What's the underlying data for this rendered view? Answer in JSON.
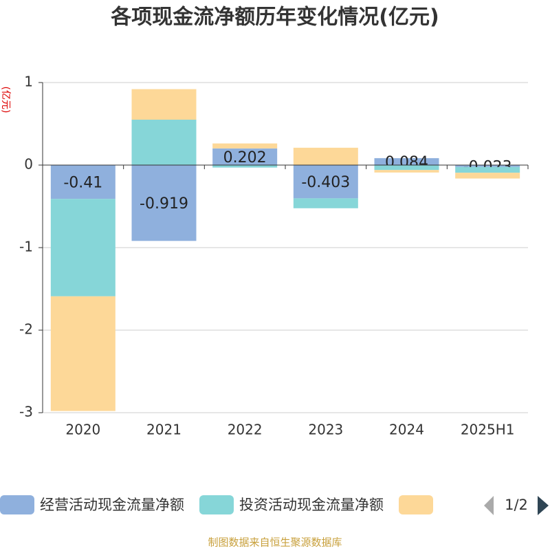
{
  "chart_data": {
    "type": "stacked_bar",
    "title": "各项现金流净额历年变化情况(亿元)",
    "y_label": "(亿元)",
    "categories": [
      "2020",
      "2021",
      "2022",
      "2023",
      "2024",
      "2025H1"
    ],
    "series": [
      {
        "name": "经营活动现金流量净额",
        "color": "#8fb0dd",
        "values": [
          -0.41,
          -0.919,
          0.202,
          -0.403,
          0.084,
          -0.023
        ],
        "show_labels": true
      },
      {
        "name": "投资活动现金流量净额",
        "color": "#86d6d8",
        "values": [
          -1.18,
          0.55,
          -0.03,
          -0.12,
          -0.06,
          -0.07
        ]
      },
      {
        "color": "#fdd898",
        "values": [
          -1.39,
          0.37,
          0.06,
          0.21,
          -0.03,
          -0.07
        ]
      }
    ],
    "ylim": [
      -3,
      1
    ],
    "yticks": [
      -3,
      -2,
      -1,
      0,
      1
    ],
    "grid": true,
    "legend_page": "1/2",
    "source": "制图数据来自恒生聚源数据库"
  }
}
